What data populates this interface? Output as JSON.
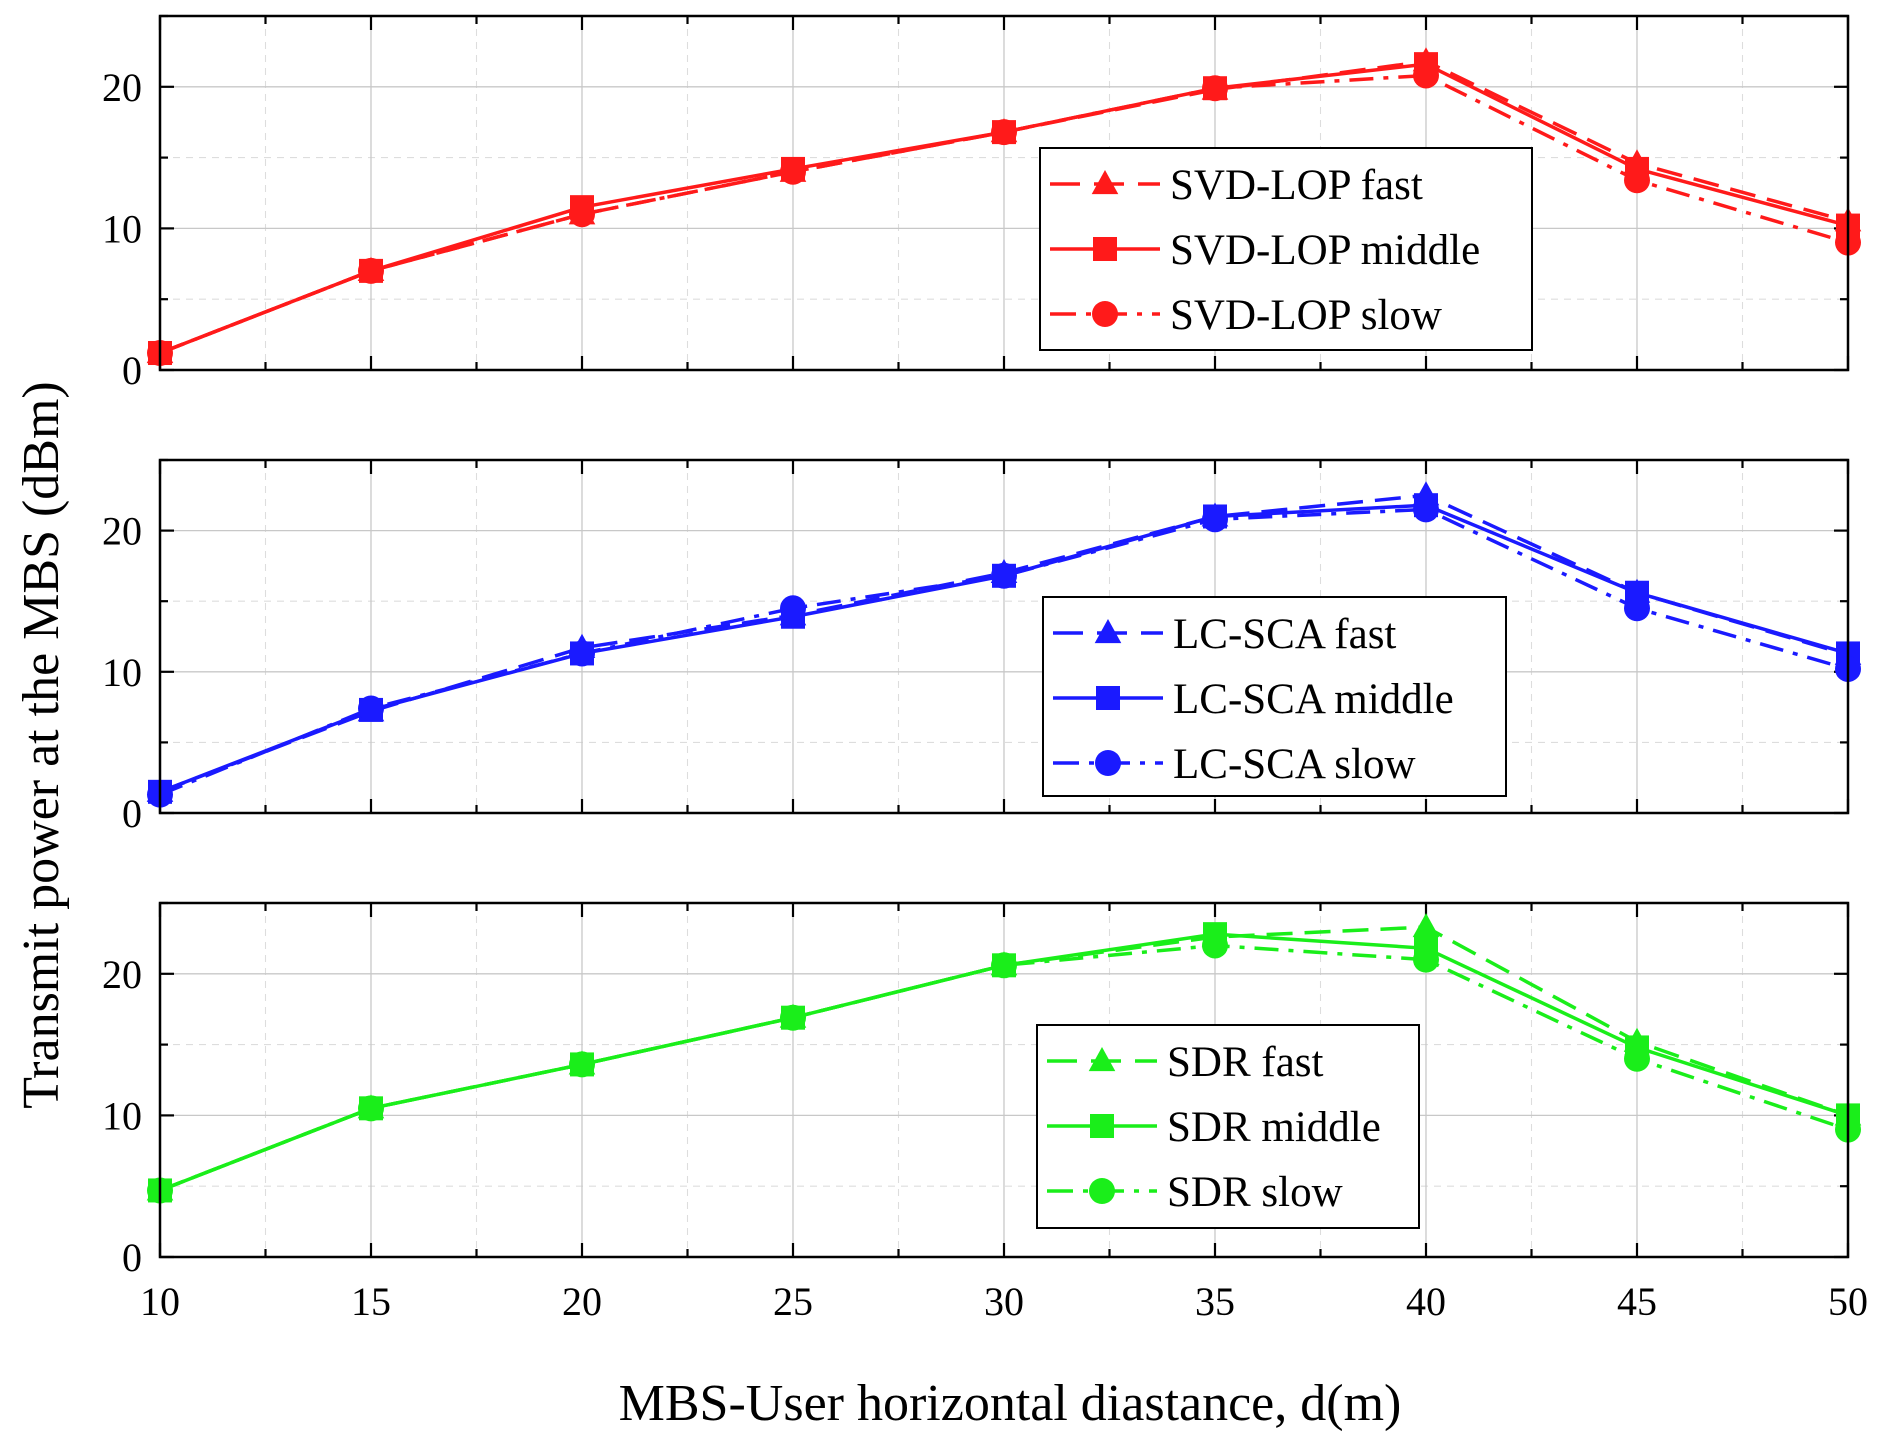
{
  "chart_data": [
    {
      "type": "line",
      "panel": "top",
      "color": "#ff1a1a",
      "x": [
        10,
        15,
        20,
        25,
        30,
        35,
        40,
        45,
        50
      ],
      "xlim": [
        10,
        50
      ],
      "ylim": [
        0,
        25
      ],
      "yticks": [
        0,
        10,
        20
      ],
      "legend_position": "center-right",
      "series": [
        {
          "name": "SVD-LOP fast",
          "marker": "triangle",
          "linestyle": "dashed",
          "values": [
            1.2,
            7.0,
            11.0,
            14.0,
            16.8,
            19.8,
            21.8,
            14.6,
            10.5
          ]
        },
        {
          "name": "SVD-LOP middle",
          "marker": "square",
          "linestyle": "solid",
          "values": [
            1.2,
            7.0,
            11.5,
            14.2,
            16.8,
            19.9,
            21.6,
            14.2,
            10.2
          ]
        },
        {
          "name": "SVD-LOP slow",
          "marker": "circle",
          "linestyle": "dashdot",
          "values": [
            1.2,
            7.0,
            11.0,
            14.0,
            16.8,
            19.9,
            20.8,
            13.4,
            9.0
          ]
        }
      ]
    },
    {
      "type": "line",
      "panel": "middle",
      "color": "#1a1aff",
      "x": [
        10,
        15,
        20,
        25,
        30,
        35,
        40,
        45,
        50
      ],
      "xlim": [
        10,
        50
      ],
      "ylim": [
        0,
        25
      ],
      "yticks": [
        0,
        10,
        20
      ],
      "legend_position": "center-right",
      "series": [
        {
          "name": "LC-SCA fast",
          "marker": "triangle",
          "linestyle": "dashed",
          "values": [
            1.5,
            7.2,
            11.7,
            14.0,
            17.0,
            21.0,
            22.5,
            15.6,
            11.2
          ]
        },
        {
          "name": "LC-SCA middle",
          "marker": "square",
          "linestyle": "solid",
          "values": [
            1.5,
            7.3,
            11.3,
            13.9,
            16.8,
            21.0,
            21.8,
            15.6,
            11.3
          ]
        },
        {
          "name": "LC-SCA slow",
          "marker": "circle",
          "linestyle": "dashdot",
          "values": [
            1.3,
            7.4,
            11.3,
            14.5,
            16.8,
            20.8,
            21.5,
            14.5,
            10.2
          ]
        }
      ]
    },
    {
      "type": "line",
      "panel": "bottom",
      "color": "#1aee1a",
      "x": [
        10,
        15,
        20,
        25,
        30,
        35,
        40,
        45,
        50
      ],
      "xlim": [
        10,
        50
      ],
      "ylim": [
        0,
        25
      ],
      "yticks": [
        0,
        10,
        20
      ],
      "xticks": [
        10,
        15,
        20,
        25,
        30,
        35,
        40,
        45,
        50
      ],
      "legend_position": "center-right",
      "series": [
        {
          "name": "SDR fast",
          "marker": "triangle",
          "linestyle": "dashed",
          "values": [
            4.7,
            10.5,
            13.6,
            16.9,
            20.6,
            22.6,
            23.3,
            15.2,
            10.0
          ]
        },
        {
          "name": "SDR middle",
          "marker": "square",
          "linestyle": "solid",
          "values": [
            4.7,
            10.5,
            13.6,
            16.9,
            20.6,
            22.8,
            21.8,
            14.8,
            10.0
          ]
        },
        {
          "name": "SDR slow",
          "marker": "circle",
          "linestyle": "dashdot",
          "values": [
            4.7,
            10.5,
            13.6,
            16.9,
            20.6,
            22.0,
            21.0,
            14.0,
            9.0
          ]
        }
      ]
    }
  ],
  "xlabel": "MBS-User horizontal diastance, d(m)",
  "ylabel": "Transmit power at the MBS (dBm)",
  "grid": true
}
